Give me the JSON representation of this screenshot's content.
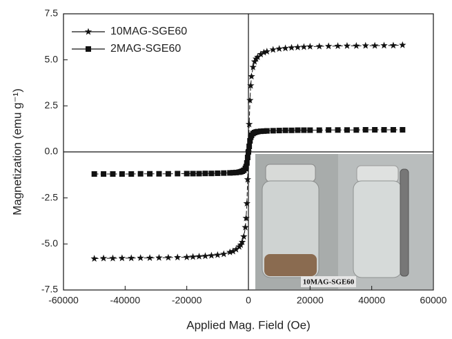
{
  "chart_data": {
    "type": "line",
    "x_label": "Applied Mag. Field (Oe)",
    "y_label": "Magnetization (emu g⁻¹)",
    "annotation": "10MAG-SGE60",
    "legend": "upper left",
    "xlim": [
      -60000,
      60000
    ],
    "xticks": [
      -60000,
      -40000,
      -20000,
      0,
      20000,
      40000,
      60000
    ],
    "ylim": [
      -7.5,
      7.5
    ],
    "yticks": [
      {
        "value": 7.5,
        "label": "7.5"
      },
      {
        "value": 5,
        "label": "5.0"
      },
      {
        "value": 2.5,
        "label": "2.5"
      },
      {
        "value": 0,
        "label": "0.0"
      },
      {
        "value": -2.5,
        "label": "-2.5"
      },
      {
        "value": -5,
        "label": "-5.0"
      },
      {
        "value": -7.5,
        "label": "-7.5"
      }
    ],
    "x": [
      -50000,
      -47000,
      -44000,
      -41000,
      -38000,
      -35000,
      -32000,
      -29000,
      -26000,
      -23000,
      -20000,
      -18000,
      -16000,
      -14000,
      -12000,
      -10000,
      -8000,
      -6000,
      -5000,
      -4000,
      -3000,
      -2500,
      -2000,
      -1500,
      -1000,
      -750,
      -500,
      -250,
      0,
      250,
      500,
      750,
      1000,
      1500,
      2000,
      2500,
      3000,
      4000,
      5000,
      6000,
      8000,
      10000,
      12000,
      14000,
      16000,
      18000,
      20000,
      23000,
      26000,
      29000,
      32000,
      35000,
      38000,
      41000,
      44000,
      47000,
      50000
    ],
    "series": [
      {
        "name": "10MAG-SGE60",
        "color": "#111111",
        "marker": "star",
        "values": [
          -5.8,
          -5.78,
          -5.78,
          -5.77,
          -5.77,
          -5.76,
          -5.76,
          -5.75,
          -5.74,
          -5.73,
          -5.72,
          -5.7,
          -5.68,
          -5.66,
          -5.63,
          -5.6,
          -5.55,
          -5.45,
          -5.4,
          -5.3,
          -5.15,
          -5.05,
          -4.9,
          -4.6,
          -4.1,
          -3.6,
          -2.8,
          -1.5,
          0,
          1.5,
          2.8,
          3.6,
          4.1,
          4.6,
          4.9,
          5.05,
          5.15,
          5.3,
          5.4,
          5.45,
          5.55,
          5.6,
          5.63,
          5.66,
          5.68,
          5.7,
          5.72,
          5.73,
          5.74,
          5.75,
          5.76,
          5.76,
          5.77,
          5.77,
          5.78,
          5.78,
          5.8
        ]
      },
      {
        "name": "2MAG-SGE60",
        "color": "#111111",
        "marker": "square",
        "values": [
          -1.2,
          -1.2,
          -1.2,
          -1.2,
          -1.2,
          -1.19,
          -1.19,
          -1.19,
          -1.19,
          -1.18,
          -1.18,
          -1.18,
          -1.18,
          -1.17,
          -1.17,
          -1.16,
          -1.15,
          -1.14,
          -1.13,
          -1.12,
          -1.1,
          -1.08,
          -1.05,
          -1.0,
          -0.9,
          -0.8,
          -0.6,
          -0.3,
          0,
          0.3,
          0.6,
          0.8,
          0.9,
          1.0,
          1.05,
          1.08,
          1.1,
          1.12,
          1.13,
          1.14,
          1.15,
          1.16,
          1.17,
          1.17,
          1.18,
          1.18,
          1.18,
          1.18,
          1.19,
          1.19,
          1.19,
          1.19,
          1.2,
          1.2,
          1.2,
          1.2,
          1.2
        ]
      }
    ]
  }
}
